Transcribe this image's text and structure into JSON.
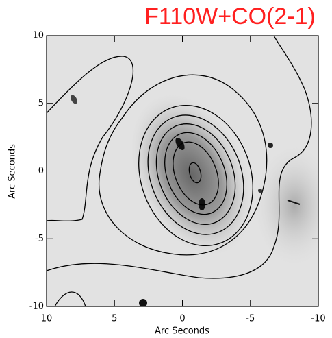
{
  "chart_data": {
    "type": "image",
    "title": "F110W+CO(2-1)",
    "xlabel": "Arc Seconds",
    "ylabel": "Arc Seconds",
    "xlim": [
      10,
      -10
    ],
    "ylim": [
      -10,
      10
    ],
    "xticks": [
      10,
      5,
      0,
      -5,
      -10
    ],
    "yticks": [
      -10,
      -5,
      0,
      5,
      10
    ]
  }
}
